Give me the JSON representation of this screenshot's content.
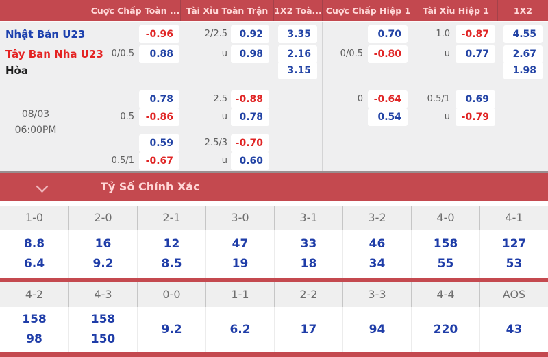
{
  "colors": {
    "header_red": "#c3484f",
    "banner_red": "#c4494f",
    "odds_blue": "#2243a5",
    "odds_red": "#e02525",
    "team_blue": "#1d41ae",
    "team_red": "#e42222",
    "body_gray": "#efeff0",
    "score_blue": "#1f3da8"
  },
  "odds_table": {
    "header_labels": [
      "Cược Chấp Toàn ...",
      "Tài Xỉu Toàn Trận",
      "1X2 Toà...",
      "Cược Chấp Hiệp 1",
      "Tài Xỉu Hiệp 1",
      "1X2"
    ],
    "teams": [
      {
        "name": "Nhật Bản U23",
        "tone": "team-blue"
      },
      {
        "name": "Tây Ban Nha U23",
        "tone": "team-red"
      },
      {
        "name": "Hòa",
        "tone": "team-black"
      }
    ],
    "match_date": "08/03",
    "match_time": "06:00PM",
    "rows": [
      {
        "cells": [
          {
            "slot": "hc1_box",
            "text": "-0.96",
            "tone": "red"
          },
          {
            "slot": "ou1_line",
            "text": "2/2.5"
          },
          {
            "slot": "ou1_box",
            "text": "0.92",
            "tone": "blue"
          },
          {
            "slot": "x121_box",
            "text": "3.35",
            "tone": "blue"
          },
          {
            "slot": "hc2_box",
            "text": "0.70",
            "tone": "blue"
          },
          {
            "slot": "ou2_line",
            "text": "1.0"
          },
          {
            "slot": "ou2_box",
            "text": "-0.87",
            "tone": "red"
          },
          {
            "slot": "x122_box",
            "text": "4.55",
            "tone": "blue"
          }
        ]
      },
      {
        "cells": [
          {
            "slot": "hc1_line",
            "text": "0/0.5"
          },
          {
            "slot": "hc1_box",
            "text": "0.88",
            "tone": "blue"
          },
          {
            "slot": "ou1_line",
            "text": "u"
          },
          {
            "slot": "ou1_box",
            "text": "0.98",
            "tone": "blue"
          },
          {
            "slot": "x121_box",
            "text": "2.16",
            "tone": "blue"
          },
          {
            "slot": "hc2_line",
            "text": "0/0.5"
          },
          {
            "slot": "hc2_box",
            "text": "-0.80",
            "tone": "red"
          },
          {
            "slot": "ou2_line",
            "text": "u"
          },
          {
            "slot": "ou2_box",
            "text": "0.77",
            "tone": "blue"
          },
          {
            "slot": "x122_box",
            "text": "2.67",
            "tone": "blue"
          }
        ]
      },
      {
        "cells": [
          {
            "slot": "x121_box",
            "text": "3.15",
            "tone": "blue"
          },
          {
            "slot": "x122_box",
            "text": "1.98",
            "tone": "blue"
          }
        ]
      },
      {
        "cells": [
          {
            "slot": "hc1_box",
            "text": "0.78",
            "tone": "blue"
          },
          {
            "slot": "ou1_line",
            "text": "2.5"
          },
          {
            "slot": "ou1_box",
            "text": "-0.88",
            "tone": "red"
          },
          {
            "slot": "hc2_line",
            "text": "0"
          },
          {
            "slot": "hc2_box",
            "text": "-0.64",
            "tone": "red"
          },
          {
            "slot": "ou2_line",
            "text": "0.5/1"
          },
          {
            "slot": "ou2_box",
            "text": "0.69",
            "tone": "blue"
          }
        ]
      },
      {
        "cells": [
          {
            "slot": "hc1_line",
            "text": "0.5"
          },
          {
            "slot": "hc1_box",
            "text": "-0.86",
            "tone": "red"
          },
          {
            "slot": "ou1_line",
            "text": "u"
          },
          {
            "slot": "ou1_box",
            "text": "0.78",
            "tone": "blue"
          },
          {
            "slot": "hc2_box",
            "text": "0.54",
            "tone": "blue"
          },
          {
            "slot": "ou2_line",
            "text": "u"
          },
          {
            "slot": "ou2_box",
            "text": "-0.79",
            "tone": "red"
          }
        ]
      },
      {
        "cells": [
          {
            "slot": "hc1_box",
            "text": "0.59",
            "tone": "blue"
          },
          {
            "slot": "ou1_line",
            "text": "2.5/3"
          },
          {
            "slot": "ou1_box",
            "text": "-0.70",
            "tone": "red"
          }
        ]
      },
      {
        "cells": [
          {
            "slot": "hc1_line",
            "text": "0.5/1"
          },
          {
            "slot": "hc1_box",
            "text": "-0.67",
            "tone": "red"
          },
          {
            "slot": "ou1_line",
            "text": "u"
          },
          {
            "slot": "ou1_box",
            "text": "0.60",
            "tone": "blue"
          }
        ]
      }
    ]
  },
  "score_panel": {
    "title": "Tỷ Số Chính Xác",
    "chevron_icon": "chevron-down"
  },
  "score_sections": [
    {
      "columns": [
        {
          "score": "1-0",
          "values": [
            "8.8",
            "6.4"
          ]
        },
        {
          "score": "2-0",
          "values": [
            "16",
            "9.2"
          ]
        },
        {
          "score": "2-1",
          "values": [
            "12",
            "8.5"
          ]
        },
        {
          "score": "3-0",
          "values": [
            "47",
            "19"
          ]
        },
        {
          "score": "3-1",
          "values": [
            "33",
            "18"
          ]
        },
        {
          "score": "3-2",
          "values": [
            "46",
            "34"
          ]
        },
        {
          "score": "4-0",
          "values": [
            "158",
            "55"
          ]
        },
        {
          "score": "4-1",
          "values": [
            "127",
            "53"
          ]
        }
      ]
    },
    {
      "columns": [
        {
          "score": "4-2",
          "values": [
            "158",
            "98"
          ]
        },
        {
          "score": "4-3",
          "values": [
            "158",
            "150"
          ]
        },
        {
          "score": "0-0",
          "values": [
            "9.2"
          ]
        },
        {
          "score": "1-1",
          "values": [
            "6.2"
          ]
        },
        {
          "score": "2-2",
          "values": [
            "17"
          ]
        },
        {
          "score": "3-3",
          "values": [
            "94"
          ]
        },
        {
          "score": "4-4",
          "values": [
            "220"
          ]
        },
        {
          "score": "AOS",
          "values": [
            "43"
          ]
        }
      ]
    }
  ]
}
